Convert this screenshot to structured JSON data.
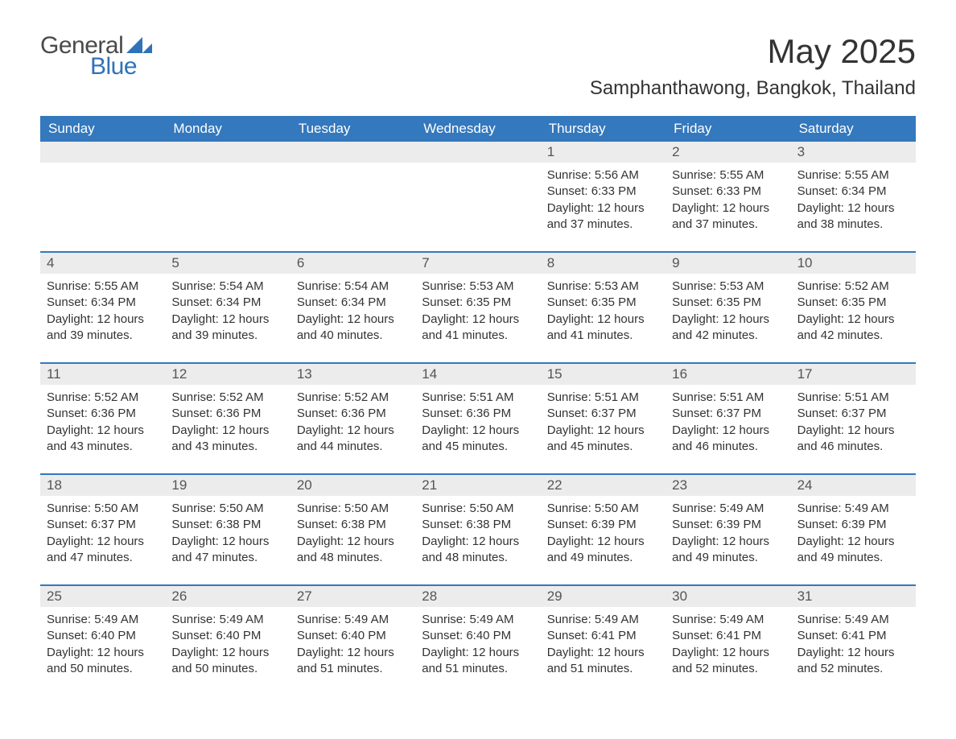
{
  "logo": {
    "general": "General",
    "blue": "Blue"
  },
  "title": "May 2025",
  "location": "Samphanthawong, Bangkok, Thailand",
  "colors": {
    "header_bg": "#3478bd",
    "header_text": "#ffffff",
    "daynum_bg": "#ececec",
    "body_text": "#333333",
    "accent_blue": "#2f72b8"
  },
  "weekdays": [
    "Sunday",
    "Monday",
    "Tuesday",
    "Wednesday",
    "Thursday",
    "Friday",
    "Saturday"
  ],
  "labels": {
    "sunrise": "Sunrise:",
    "sunset": "Sunset:",
    "daylight": "Daylight:"
  },
  "weeks": [
    [
      null,
      null,
      null,
      null,
      {
        "n": "1",
        "sunrise": "5:56 AM",
        "sunset": "6:33 PM",
        "daylight": "12 hours and 37 minutes."
      },
      {
        "n": "2",
        "sunrise": "5:55 AM",
        "sunset": "6:33 PM",
        "daylight": "12 hours and 37 minutes."
      },
      {
        "n": "3",
        "sunrise": "5:55 AM",
        "sunset": "6:34 PM",
        "daylight": "12 hours and 38 minutes."
      }
    ],
    [
      {
        "n": "4",
        "sunrise": "5:55 AM",
        "sunset": "6:34 PM",
        "daylight": "12 hours and 39 minutes."
      },
      {
        "n": "5",
        "sunrise": "5:54 AM",
        "sunset": "6:34 PM",
        "daylight": "12 hours and 39 minutes."
      },
      {
        "n": "6",
        "sunrise": "5:54 AM",
        "sunset": "6:34 PM",
        "daylight": "12 hours and 40 minutes."
      },
      {
        "n": "7",
        "sunrise": "5:53 AM",
        "sunset": "6:35 PM",
        "daylight": "12 hours and 41 minutes."
      },
      {
        "n": "8",
        "sunrise": "5:53 AM",
        "sunset": "6:35 PM",
        "daylight": "12 hours and 41 minutes."
      },
      {
        "n": "9",
        "sunrise": "5:53 AM",
        "sunset": "6:35 PM",
        "daylight": "12 hours and 42 minutes."
      },
      {
        "n": "10",
        "sunrise": "5:52 AM",
        "sunset": "6:35 PM",
        "daylight": "12 hours and 42 minutes."
      }
    ],
    [
      {
        "n": "11",
        "sunrise": "5:52 AM",
        "sunset": "6:36 PM",
        "daylight": "12 hours and 43 minutes."
      },
      {
        "n": "12",
        "sunrise": "5:52 AM",
        "sunset": "6:36 PM",
        "daylight": "12 hours and 43 minutes."
      },
      {
        "n": "13",
        "sunrise": "5:52 AM",
        "sunset": "6:36 PM",
        "daylight": "12 hours and 44 minutes."
      },
      {
        "n": "14",
        "sunrise": "5:51 AM",
        "sunset": "6:36 PM",
        "daylight": "12 hours and 45 minutes."
      },
      {
        "n": "15",
        "sunrise": "5:51 AM",
        "sunset": "6:37 PM",
        "daylight": "12 hours and 45 minutes."
      },
      {
        "n": "16",
        "sunrise": "5:51 AM",
        "sunset": "6:37 PM",
        "daylight": "12 hours and 46 minutes."
      },
      {
        "n": "17",
        "sunrise": "5:51 AM",
        "sunset": "6:37 PM",
        "daylight": "12 hours and 46 minutes."
      }
    ],
    [
      {
        "n": "18",
        "sunrise": "5:50 AM",
        "sunset": "6:37 PM",
        "daylight": "12 hours and 47 minutes."
      },
      {
        "n": "19",
        "sunrise": "5:50 AM",
        "sunset": "6:38 PM",
        "daylight": "12 hours and 47 minutes."
      },
      {
        "n": "20",
        "sunrise": "5:50 AM",
        "sunset": "6:38 PM",
        "daylight": "12 hours and 48 minutes."
      },
      {
        "n": "21",
        "sunrise": "5:50 AM",
        "sunset": "6:38 PM",
        "daylight": "12 hours and 48 minutes."
      },
      {
        "n": "22",
        "sunrise": "5:50 AM",
        "sunset": "6:39 PM",
        "daylight": "12 hours and 49 minutes."
      },
      {
        "n": "23",
        "sunrise": "5:49 AM",
        "sunset": "6:39 PM",
        "daylight": "12 hours and 49 minutes."
      },
      {
        "n": "24",
        "sunrise": "5:49 AM",
        "sunset": "6:39 PM",
        "daylight": "12 hours and 49 minutes."
      }
    ],
    [
      {
        "n": "25",
        "sunrise": "5:49 AM",
        "sunset": "6:40 PM",
        "daylight": "12 hours and 50 minutes."
      },
      {
        "n": "26",
        "sunrise": "5:49 AM",
        "sunset": "6:40 PM",
        "daylight": "12 hours and 50 minutes."
      },
      {
        "n": "27",
        "sunrise": "5:49 AM",
        "sunset": "6:40 PM",
        "daylight": "12 hours and 51 minutes."
      },
      {
        "n": "28",
        "sunrise": "5:49 AM",
        "sunset": "6:40 PM",
        "daylight": "12 hours and 51 minutes."
      },
      {
        "n": "29",
        "sunrise": "5:49 AM",
        "sunset": "6:41 PM",
        "daylight": "12 hours and 51 minutes."
      },
      {
        "n": "30",
        "sunrise": "5:49 AM",
        "sunset": "6:41 PM",
        "daylight": "12 hours and 52 minutes."
      },
      {
        "n": "31",
        "sunrise": "5:49 AM",
        "sunset": "6:41 PM",
        "daylight": "12 hours and 52 minutes."
      }
    ]
  ]
}
